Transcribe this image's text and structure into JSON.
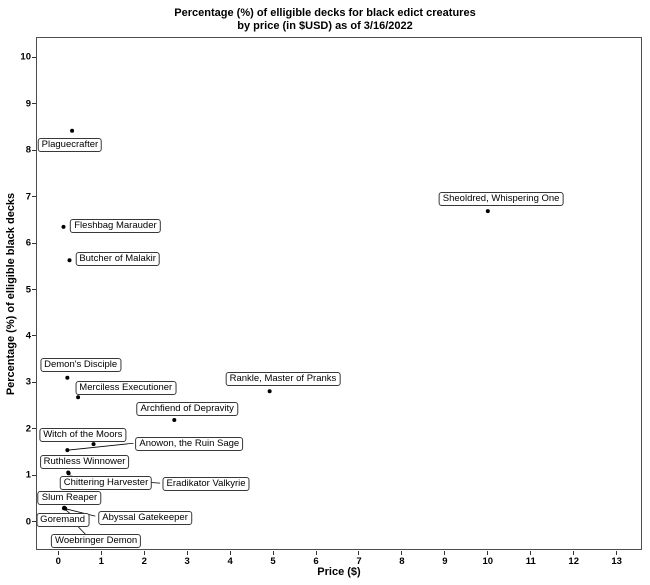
{
  "chart_data": {
    "type": "scatter",
    "title_line1": "Percentage (%) of elligible decks for black edict creatures",
    "title_line2": "by price (in $USD) as of 3/16/2022",
    "xlabel": "Price ($)",
    "ylabel": "Percentage (%) of elligible black decks",
    "x_ticks": [
      0,
      1,
      2,
      3,
      4,
      5,
      6,
      7,
      8,
      9,
      10,
      11,
      12,
      13
    ],
    "y_ticks": [
      0,
      1,
      2,
      3,
      4,
      5,
      6,
      7,
      8,
      9,
      10
    ],
    "xlim": [
      -0.52,
      13.59
    ],
    "ylim": [
      -0.61,
      10.44
    ],
    "grid": false,
    "legend": false,
    "points": [
      {
        "name": "Plaguecrafter",
        "price": 0.32,
        "pct": 8.42,
        "label": {
          "x": 0.27,
          "y": 8.12
        },
        "seg": null
      },
      {
        "name": "Sheoldred, Whispering One",
        "price": 10.0,
        "pct": 6.69,
        "label": {
          "x": 10.31,
          "y": 6.95
        },
        "seg": null
      },
      {
        "name": "Fleshbag Marauder",
        "price": 0.12,
        "pct": 6.35,
        "label": {
          "x": 1.33,
          "y": 6.37
        },
        "seg": null
      },
      {
        "name": "Butcher of Malakir",
        "price": 0.26,
        "pct": 5.63,
        "label": {
          "x": 1.38,
          "y": 5.65
        },
        "seg": null
      },
      {
        "name": "Demon's Disciple",
        "price": 0.21,
        "pct": 3.1,
        "label": {
          "x": 0.52,
          "y": 3.37
        },
        "seg": null
      },
      {
        "name": "Merciless Executioner",
        "price": 0.46,
        "pct": 2.68,
        "label": {
          "x": 1.57,
          "y": 2.89
        },
        "seg": null
      },
      {
        "name": "Rankle, Master of Pranks",
        "price": 4.92,
        "pct": 2.81,
        "label": {
          "x": 5.23,
          "y": 3.07
        },
        "seg": null
      },
      {
        "name": "Archfiend of Depravity",
        "price": 2.7,
        "pct": 2.19,
        "label": {
          "x": 3.0,
          "y": 2.42
        },
        "seg": null
      },
      {
        "name": "Witch of the Moors",
        "price": 0.82,
        "pct": 1.67,
        "label": {
          "x": 0.57,
          "y": 1.87
        },
        "seg": null
      },
      {
        "name": "Anowon, the Ruin Sage",
        "price": 0.21,
        "pct": 1.54,
        "label": {
          "x": 3.05,
          "y": 1.68
        },
        "seg": [
          1.75,
          1.69
        ]
      },
      {
        "name": "Ruthless Winnower",
        "price": 0.23,
        "pct": 1.06,
        "label": {
          "x": 0.61,
          "y": 1.28
        },
        "seg": null
      },
      {
        "name": "Chittering Harvester",
        "price": 0.24,
        "pct": 1.04,
        "label": {
          "x": 1.11,
          "y": 0.84
        },
        "seg": null
      },
      {
        "name": "Eradikator Valkyrie",
        "price": 0.3,
        "pct": 0.95,
        "label": {
          "x": 3.44,
          "y": 0.82
        },
        "seg": [
          2.37,
          0.83
        ]
      },
      {
        "name": "Slum Reaper",
        "price": 0.14,
        "pct": 0.3,
        "label": {
          "x": 0.26,
          "y": 0.52
        },
        "seg": null
      },
      {
        "name": "Goremand",
        "price": 0.13,
        "pct": 0.29,
        "label": {
          "x": 0.1,
          "y": 0.04
        },
        "seg": [
          0.28,
          0.17
        ]
      },
      {
        "name": "Abyssal Gatekeeper",
        "price": 0.16,
        "pct": 0.28,
        "label": {
          "x": 2.02,
          "y": 0.07
        },
        "seg": [
          0.86,
          0.12
        ]
      },
      {
        "name": "Woebringer Demon",
        "price": 0.33,
        "pct": 0.02,
        "label": {
          "x": 0.88,
          "y": -0.41
        },
        "seg": [
          0.63,
          -0.27
        ]
      }
    ]
  },
  "colors": {
    "point": "#000000",
    "segment": "#000000",
    "label_border": "#383838",
    "panel_border": "#4d4d4d",
    "tick": "#333333",
    "text": "#000000",
    "background": "#ffffff"
  }
}
